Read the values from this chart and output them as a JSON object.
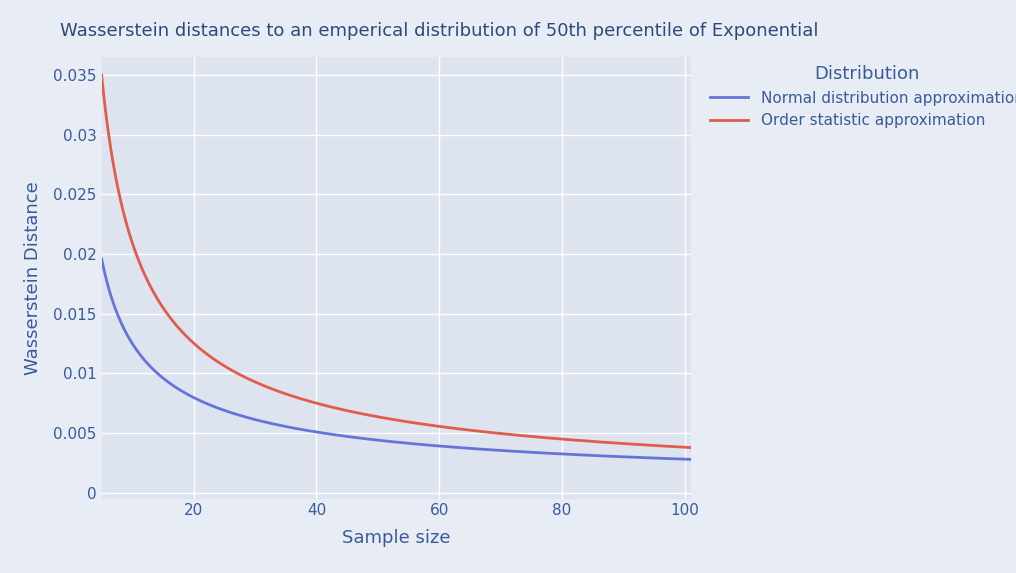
{
  "title": "Wasserstein distances to an emperical distribution of 50th percentile of Exponential",
  "xlabel": "Sample size",
  "ylabel": "Wasserstein Distance",
  "legend_title": "Distribution",
  "legend_labels": [
    "Normal distribution approximation",
    "Order statistic approximation"
  ],
  "line_colors": [
    "#6674d9",
    "#e05c4b"
  ],
  "background_color": "#e8edf5",
  "plot_bg_color": "#dde4f0",
  "title_color": "#2d4a7a",
  "label_color": "#3a5a9a",
  "legend_color": "#3a5a9a",
  "grid_color": "#ffffff",
  "xlim": [
    5,
    101
  ],
  "ylim": [
    -0.0005,
    0.0365
  ],
  "x_ticks": [
    20,
    40,
    60,
    80,
    100
  ],
  "y_ticks": [
    0,
    0.005,
    0.01,
    0.015,
    0.02,
    0.025,
    0.03,
    0.035
  ]
}
